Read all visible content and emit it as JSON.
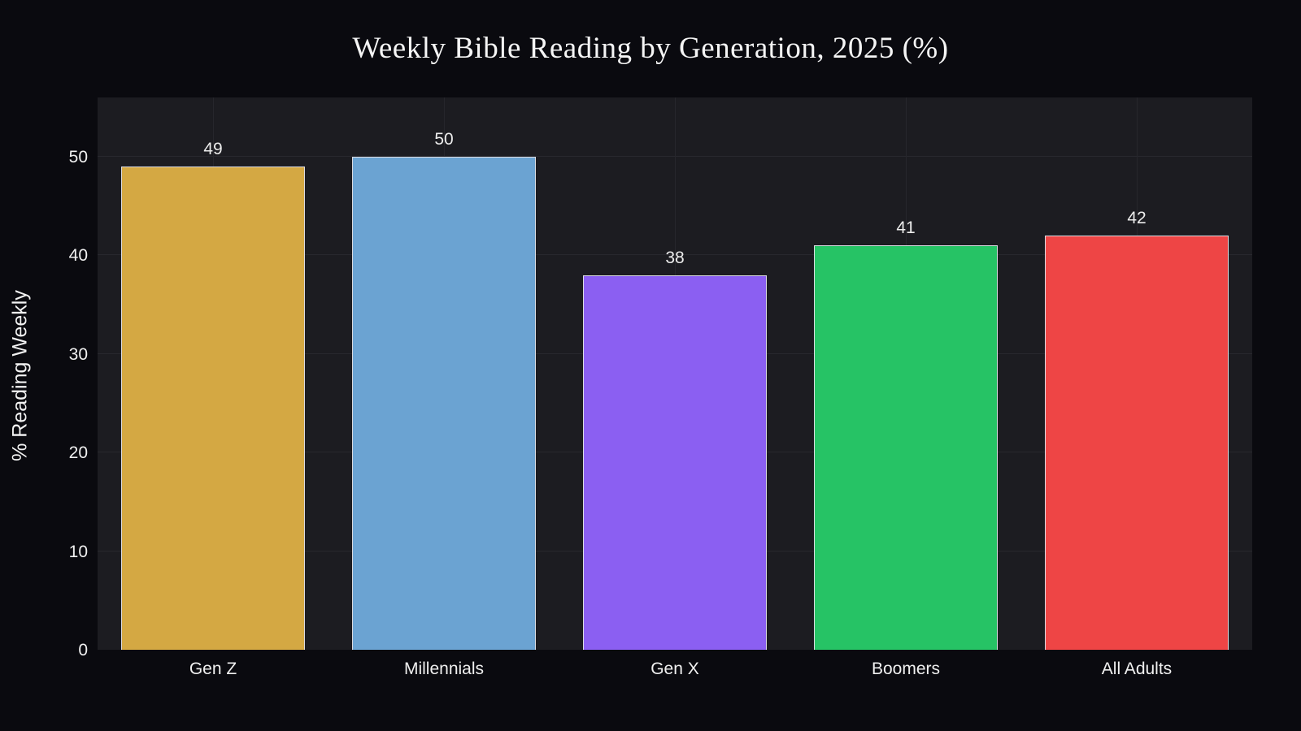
{
  "chart_data": {
    "type": "bar",
    "title": "Weekly Bible Reading by Generation, 2025 (%)",
    "xlabel": "",
    "ylabel": "% Reading Weekly",
    "categories": [
      "Gen Z",
      "Millennials",
      "Gen X",
      "Boomers",
      "All Adults"
    ],
    "values": [
      49,
      50,
      38,
      41,
      42
    ],
    "bar_colors": [
      "#d4a843",
      "#6ba3d2",
      "#8b5ff2",
      "#26c365",
      "#ee4545"
    ],
    "ylim": [
      0,
      56
    ],
    "yticks": [
      0,
      10,
      20,
      30,
      40,
      50
    ],
    "grid": true,
    "legend": false,
    "value_labels_shown": true
  },
  "colors": {
    "page_background": "#0a0a0f",
    "plot_background": "#1c1c21",
    "gridline": "#28282e",
    "bar_border": "#dcdce2",
    "text": "#f0f0f0"
  }
}
